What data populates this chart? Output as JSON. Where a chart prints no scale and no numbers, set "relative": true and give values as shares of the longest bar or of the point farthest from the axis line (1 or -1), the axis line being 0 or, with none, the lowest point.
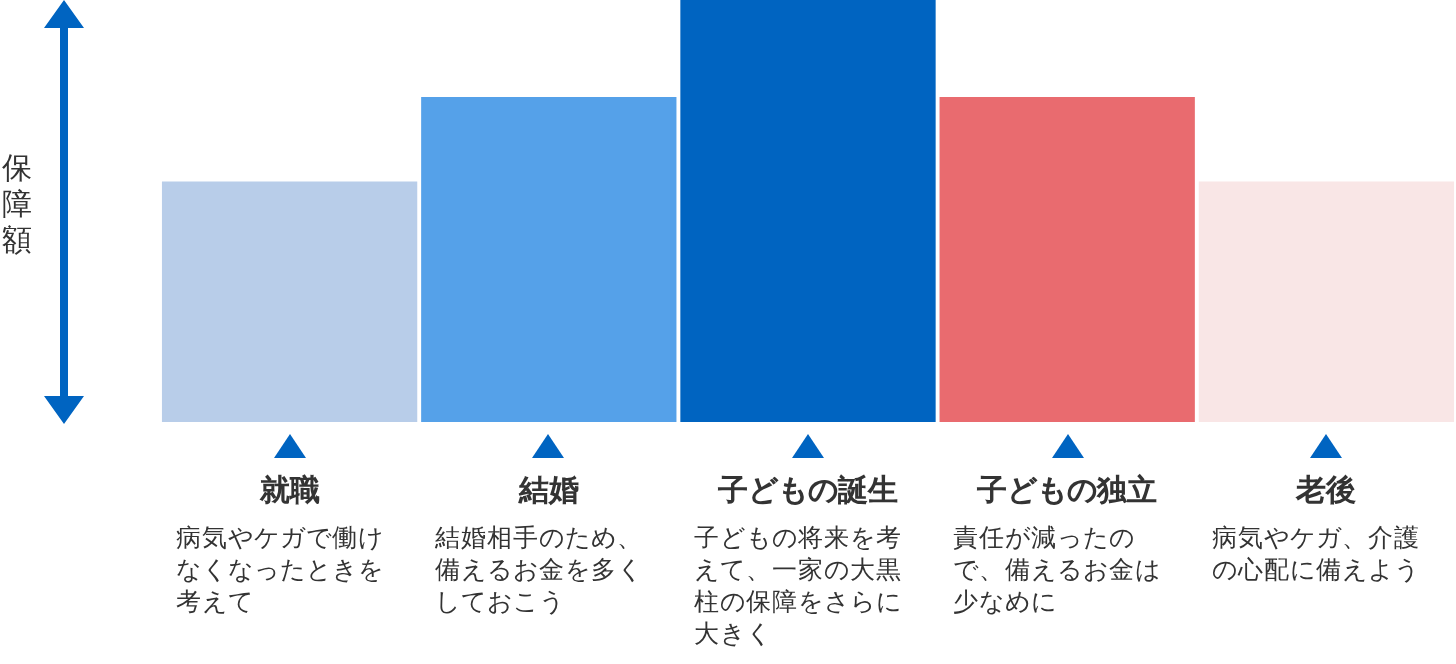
{
  "chart_data": {
    "type": "bar",
    "relative": true,
    "ylabel": "保障額",
    "categories": [
      "就職",
      "結婚",
      "子どもの誕生",
      "子どもの独立",
      "老後"
    ],
    "values": [
      0.57,
      0.77,
      1,
      0.77,
      0.57
    ],
    "colors": [
      "#b8cde9",
      "#55a1e9",
      "#0064c1",
      "#e96b6f",
      "#f9e6e6"
    ],
    "annotations": [
      "病気やケガで働けなくなったときを考えて",
      "結婚相手のため、備えるお金を多くしておこう",
      "子どもの将来を考えて、一家の大黒柱の保障をさらに大きく",
      "責任が減ったので、備えるお金は少なめに",
      "病気やケガ、介護の心配に備えよう"
    ]
  }
}
